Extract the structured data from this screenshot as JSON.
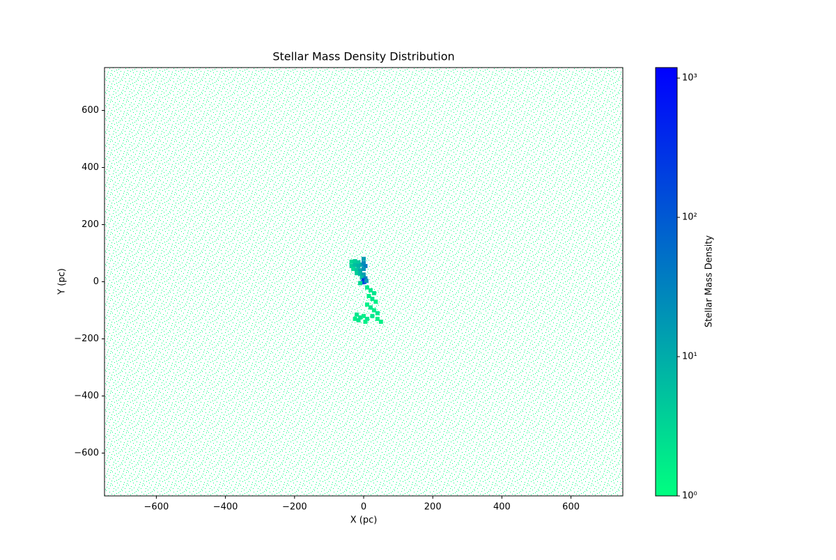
{
  "chart_data": {
    "type": "heatmap",
    "title": "Stellar Mass Density Distribution",
    "x_label": "X (pc)",
    "y_label": "Y (pc)",
    "colorbar_label": "Stellar Mass Density",
    "xlim": [
      -750,
      750
    ],
    "ylim": [
      -750,
      750
    ],
    "xticks": [
      {
        "value": -600,
        "label": "−600"
      },
      {
        "value": -400,
        "label": "−400"
      },
      {
        "value": -200,
        "label": "−200"
      },
      0,
      200,
      400,
      600
    ],
    "yticks": [
      {
        "value": -600,
        "label": "−600"
      },
      {
        "value": -400,
        "label": "−400"
      },
      {
        "value": -200,
        "label": "−200"
      },
      0,
      200,
      400,
      600
    ],
    "log_color": true,
    "clim": [
      1,
      1190
    ],
    "cticks": [
      {
        "value": 1,
        "label": "10⁰"
      },
      {
        "value": 10,
        "label": "10¹"
      },
      {
        "value": 100,
        "label": "10²"
      },
      {
        "value": 1000,
        "label": "10³"
      }
    ],
    "colormap": [
      "#00ff80",
      "#0000ff"
    ],
    "x": [
      -35,
      -25,
      -15,
      -35,
      -25,
      -15,
      -5,
      5,
      -30,
      -20,
      -10,
      0,
      -20,
      -10,
      0,
      -5,
      5,
      0,
      2,
      -3,
      8,
      -10,
      0,
      0,
      10,
      20,
      30,
      15,
      25,
      35,
      10,
      20,
      30,
      40,
      -20,
      -10,
      0,
      10,
      25,
      40,
      50,
      -25,
      5,
      -15
    ],
    "y": [
      70,
      72,
      68,
      55,
      58,
      55,
      60,
      55,
      45,
      42,
      40,
      45,
      30,
      28,
      25,
      15,
      12,
      5,
      0,
      -2,
      3,
      -5,
      65,
      80,
      -20,
      -30,
      -40,
      -50,
      -60,
      -70,
      -80,
      -90,
      -100,
      -110,
      -115,
      -125,
      -120,
      -130,
      -120,
      -130,
      -140,
      -130,
      -140,
      -135
    ],
    "values": [
      3,
      4,
      5,
      4,
      6,
      8,
      12,
      40,
      3,
      5,
      10,
      20,
      4,
      8,
      15,
      6,
      30,
      200,
      1000,
      150,
      20,
      3,
      25,
      15,
      2,
      2,
      2,
      1.5,
      2,
      1.5,
      1.5,
      2,
      1.5,
      2,
      2,
      2,
      1.5,
      2,
      2,
      1.5,
      1.5,
      1.5,
      1.5,
      2
    ]
  }
}
